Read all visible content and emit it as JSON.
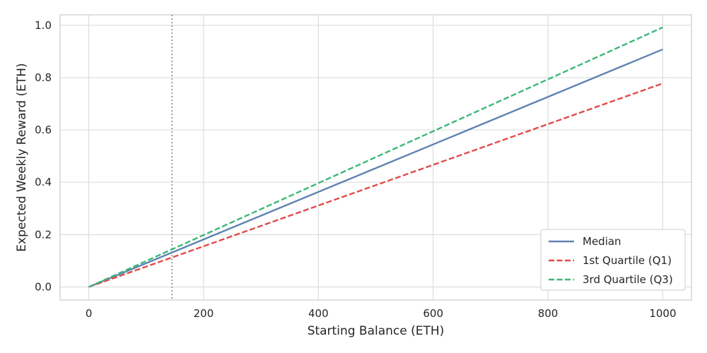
{
  "chart_data": {
    "type": "line",
    "title": "",
    "xlabel": "Starting Balance (ETH)",
    "ylabel": "Expected Weekly Reward (ETH)",
    "xlim": [
      -50,
      1050
    ],
    "ylim": [
      -0.05,
      1.04
    ],
    "x_ticks": [
      0,
      200,
      400,
      600,
      800,
      1000
    ],
    "y_ticks": [
      0.0,
      0.2,
      0.4,
      0.6,
      0.8,
      1.0
    ],
    "x_tick_labels": [
      "0",
      "200",
      "400",
      "600",
      "800",
      "1000"
    ],
    "y_tick_labels": [
      "0.0",
      "0.2",
      "0.4",
      "0.6",
      "0.8",
      "1.0"
    ],
    "grid": true,
    "legend_position": "bottom-right",
    "vertical_reference_line": {
      "x": 145,
      "style": "dotted",
      "color": "#808080"
    },
    "x": [
      0,
      1000
    ],
    "series": [
      {
        "name": "Median",
        "values": [
          0,
          0.908
        ],
        "color": "#5f83b1",
        "style": "solid"
      },
      {
        "name": "1st Quartile (Q1)",
        "values": [
          0,
          0.778
        ],
        "color": "#e24a4a",
        "style": "dashed"
      },
      {
        "name": "3rd Quartile (Q3)",
        "values": [
          0,
          0.992
        ],
        "color": "#3cb878",
        "style": "dashed"
      }
    ]
  }
}
